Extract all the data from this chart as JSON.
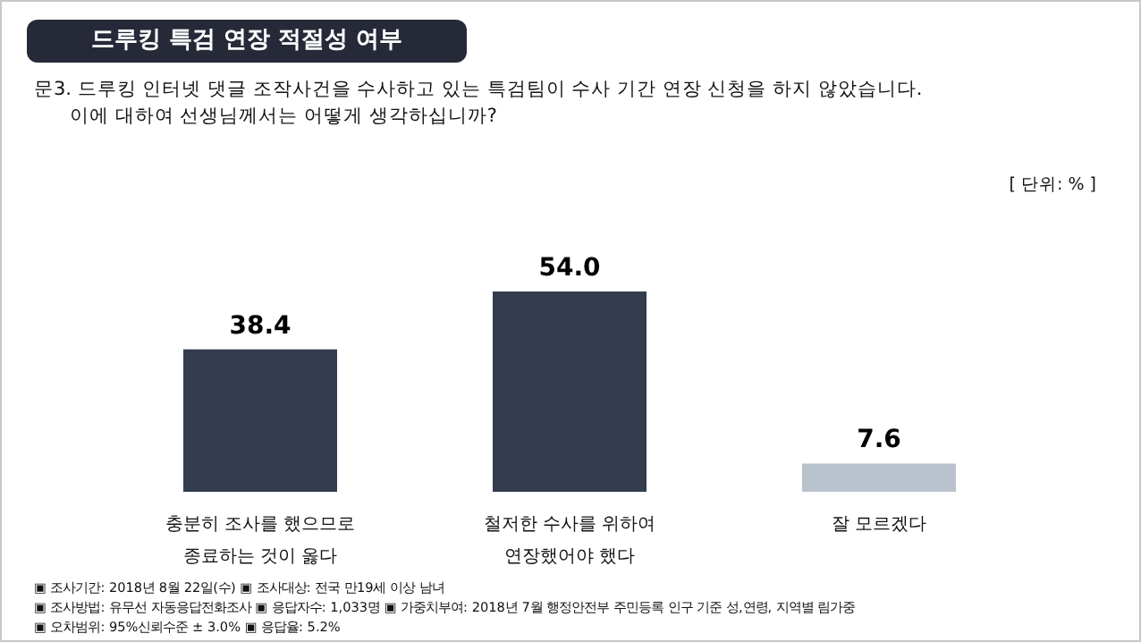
{
  "chart_data": {
    "type": "bar",
    "title": "드루킹 특검 연장 적절성 여부",
    "subtitle": "문3. 드루킹 인터넷 댓글 조작사건을 수사하고 있는 특검팀이 수사 기간 연장 신청을 하지 않았습니다.",
    "annotations": [
      "이에 대하여 선생님께서는 어떻게 생각하십니까?",
      "[ 단위: % ]",
      "▣ 조사기간: 2018년 8월 22일(수) ▣ 조사대상: 전국 만19세 이상 남녀",
      "▣ 조사방법: 유무선 자동응답전화조사 ▣ 응답자수: 1,033명 ▣ 가중치부여: 2018년 7월 행정안전부 주민등록 인구 기준 성,연령, 지역별 림가중",
      "▣ 오차범위: 95%신뢰수준 ± 3.0% ▣ 응답율: 5.2%"
    ],
    "categories": [
      "충분히 조사를 했으므로\n종료하는 것이 옳다",
      "철저한 수사를 위하여\n연장했어야 했다",
      "잘 모르겠다"
    ],
    "values": [
      38.4,
      54.0,
      7.6
    ],
    "colors": [
      "#333d4f",
      "#333d4f",
      "#b9c3cd"
    ],
    "value_labels": [
      "38.4",
      "54.0",
      "7.6"
    ]
  }
}
